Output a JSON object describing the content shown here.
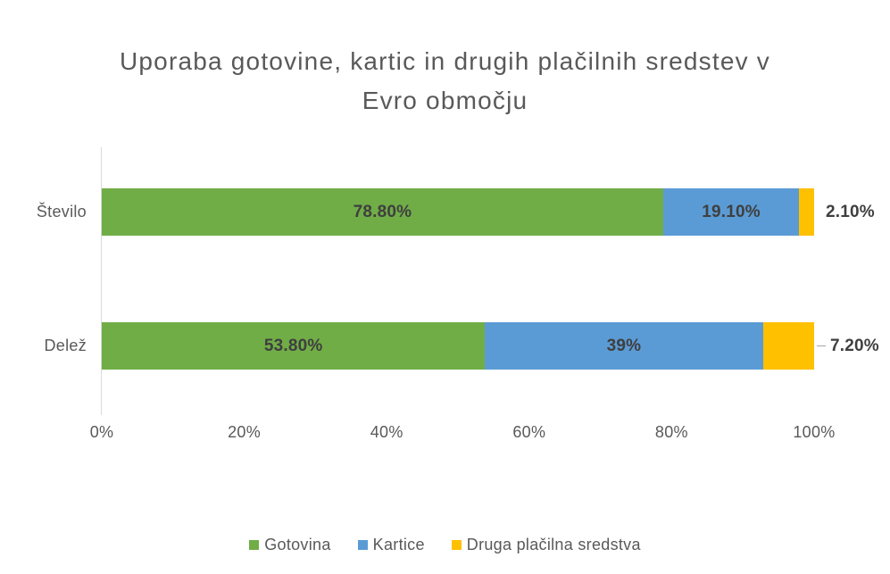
{
  "chart_data": {
    "type": "bar",
    "orientation": "horizontal",
    "stacked": true,
    "title": "Uporaba gotovine, kartic in drugih plačilnih sredstev v Evro območju",
    "title_lines": [
      "Uporaba gotovine, kartic in drugih plačilnih sredstev v",
      "Evro območju"
    ],
    "categories": [
      "Število",
      "Delež"
    ],
    "series": [
      {
        "name": "Gotovina",
        "color": "#70AD47",
        "values": [
          78.8,
          53.8
        ]
      },
      {
        "name": "Kartice",
        "color": "#5B9BD5",
        "values": [
          19.1,
          39
        ]
      },
      {
        "name": "Druga plačilna sredstva",
        "color": "#FFC000",
        "values": [
          2.1,
          7.2
        ]
      }
    ],
    "data_labels": [
      [
        "78.80%",
        "19.10%",
        "2.10%"
      ],
      [
        "53.80%",
        "39%",
        "7.20%"
      ]
    ],
    "x_ticks": [
      "0%",
      "20%",
      "40%",
      "60%",
      "80%",
      "100%"
    ],
    "xlim": [
      0,
      100
    ],
    "grid": false,
    "legend_position": "bottom",
    "text_color": "#595959",
    "data_label_color": "#3F3F3F",
    "axis_line_color": "#D9D9D9"
  }
}
